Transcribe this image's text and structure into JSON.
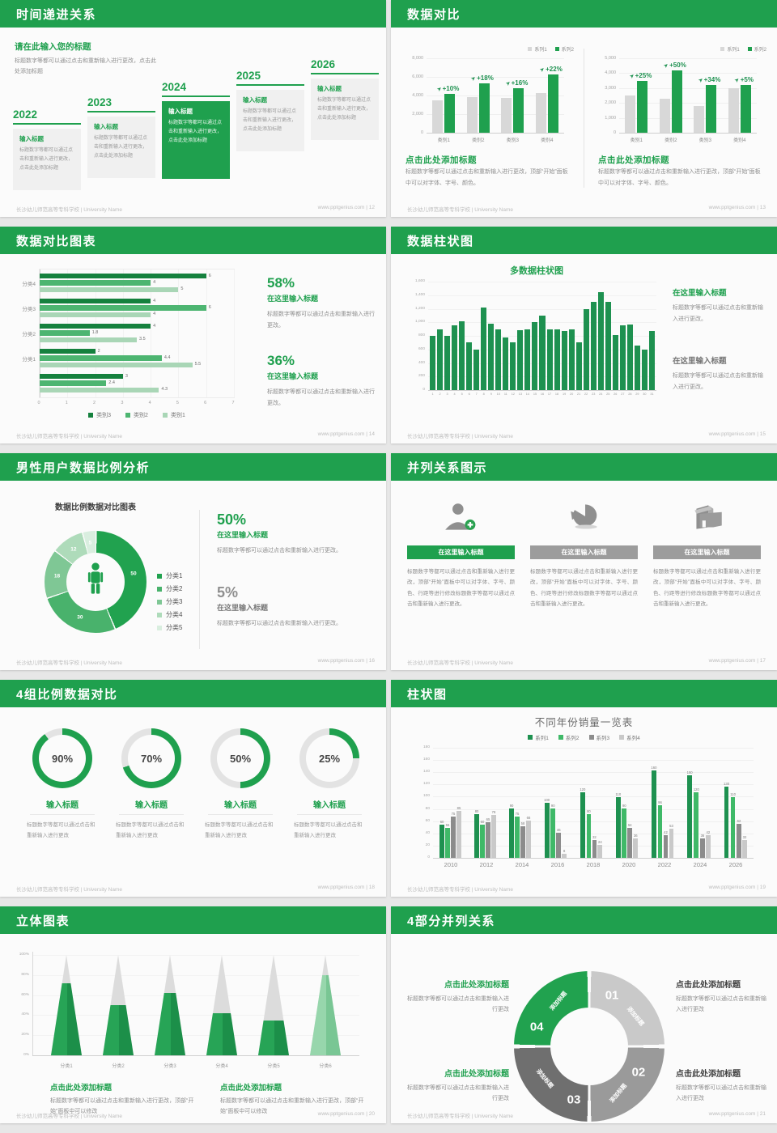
{
  "theme": {
    "green": "#1FA04E",
    "green_dark": "#15813E",
    "green_mid": "#4DB571",
    "green_light": "#A9D6B6",
    "green_pale": "#D8EDDE",
    "green_dark2": "#1E9150",
    "green_bright": "#3FB968",
    "gray_bar": "#D8D8D8",
    "gray_dark": "#8C8C8C",
    "gray_light": "#C9C9C9",
    "gray_text": "#8F8F8F",
    "heading_dark": "#404040"
  },
  "footer": {
    "left": "长沙幼儿师范高等专科学校 | University Name",
    "site": "www.pptgenius.com"
  },
  "slides": {
    "s12": {
      "header": "时间递进关系",
      "page": "12",
      "intro_title": "请在此输入您的标题",
      "intro_body": "标题数字等都可以通过点击和重新输入进行更改，点击此处添加标题",
      "items": [
        {
          "year": "2022",
          "title": "输入标题",
          "body": "标题数字等都可以通过点击和重新输入进行更改，点击此处添加标题",
          "highlight": false
        },
        {
          "year": "2023",
          "title": "输入标题",
          "body": "标题数字等都可以通过点击和重新输入进行更改，点击此处添加标题",
          "highlight": false
        },
        {
          "year": "2024",
          "title": "输入标题",
          "body": "标题数字等都可以通过点击和重新输入进行更改，点击此处添加标题",
          "highlight": true
        },
        {
          "year": "2025",
          "title": "输入标题",
          "body": "标题数字等都可以通过点击和重新输入进行更改，点击此处添加标题",
          "highlight": false
        },
        {
          "year": "2026",
          "title": "输入标题",
          "body": "标题数字等都可以通过点击和重新输入进行更改，点击此处添加标题",
          "highlight": false
        }
      ]
    },
    "s13": {
      "header": "数据对比",
      "page": "13",
      "panels": [
        {
          "heading": "点击此处添加标题",
          "body": "标题数字等都可以通过点击和重新输入进行更改，顶部“开始”面板中可以对字体、字号、颜色。"
        },
        {
          "heading": "点击此处添加标题",
          "body": "标题数字等都可以通过点击和重新输入进行更改，顶部“开始”面板中可以对字体、字号、颜色。"
        }
      ]
    },
    "s14": {
      "header": "数据对比图表",
      "page": "14",
      "stats": [
        {
          "pct": "58%",
          "title": "在这里输入标题",
          "body": "标题数字等都可以通过点击和重新输入进行更改。",
          "green": true
        },
        {
          "pct": "36%",
          "title": "在这里输入标题",
          "body": "标题数字等都可以通过点击和重新输入进行更改。",
          "green": true
        }
      ]
    },
    "s15": {
      "header": "数据柱状图",
      "page": "15",
      "stats": [
        {
          "title": "在这里输入标题",
          "body": "标题数字等都可以通过点击和重新输入进行更改。",
          "green": true
        },
        {
          "title": "在这里输入标题",
          "body": "标题数字等都可以通过点击和重新输入进行更改。",
          "green": false
        }
      ]
    },
    "s16": {
      "header": "男性用户数据比例分析",
      "page": "16",
      "chart_title": "数据比例数据对比图表",
      "stats": [
        {
          "pct": "50%",
          "title": "在这里输入标题",
          "body": "标题数字等都可以通过点击和重新输入进行更改。",
          "green": true
        },
        {
          "pct": "5%",
          "title": "在这里输入标题",
          "body": "标题数字等都可以通过点击和重新输入进行更改。",
          "green": false
        }
      ]
    },
    "s17": {
      "header": "并列关系图示",
      "page": "17",
      "columns": [
        {
          "icon": "person-add-icon",
          "title": "在这里输入标题",
          "green": true,
          "body": "标题数字等都可以通过点击和重新输入进行更改，顶部“开始”面板中可以对字体、字号、颜色、行距等进行修改标题数字等都可以通过点击和重新输入进行更改。"
        },
        {
          "icon": "pie-3d-icon",
          "title": "在这里输入标题",
          "green": false,
          "body": "标题数字等都可以通过点击和重新输入进行更改，顶部“开始”面板中可以对字体、字号、颜色、行距等进行修改标题数字等都可以通过点击和重新输入进行更改。"
        },
        {
          "icon": "building-icon",
          "title": "在这里输入标题",
          "green": false,
          "body": "标题数字等都可以通过点击和重新输入进行更改，顶部“开始”面板中可以对字体、字号、颜色、行距等进行修改标题数字等都可以通过点击和重新输入进行更改。"
        }
      ]
    },
    "s18": {
      "header": "4组比例数据对比",
      "page": "18",
      "items": [
        {
          "pct": "90%",
          "title": "输入标题",
          "body": "标题数字等都可以通过点击和重新输入进行更改"
        },
        {
          "pct": "70%",
          "title": "输入标题",
          "body": "标题数字等都可以通过点击和重新输入进行更改"
        },
        {
          "pct": "50%",
          "title": "输入标题",
          "body": "标题数字等都可以通过点击和重新输入进行更改"
        },
        {
          "pct": "25%",
          "title": "输入标题",
          "body": "标题数字等都可以通过点击和重新输入进行更改"
        }
      ]
    },
    "s19": {
      "header": "柱状图",
      "page": "19"
    },
    "s20": {
      "header": "立体图表",
      "page": "20",
      "blocks": [
        {
          "heading": "点击此处添加标题",
          "body": "标题数字等都可以通过点击和重新输入进行更改，顶部“开始”面板中可以修改"
        },
        {
          "heading": "点击此处添加标题",
          "body": "标题数字等都可以通过点击和重新输入进行更改，顶部“开始”面板中可以修改"
        }
      ]
    },
    "s21": {
      "header": "4部分并列关系",
      "page": "21",
      "segments": [
        {
          "num": "01",
          "label": "添加标题"
        },
        {
          "num": "02",
          "label": "添加标题"
        },
        {
          "num": "03",
          "label": "添加标题"
        },
        {
          "num": "04",
          "label": "添加标题"
        }
      ],
      "callouts": [
        {
          "pos": "tl",
          "green": true,
          "heading": "点击此处添加标题",
          "body": "标题数字等都可以通过点击和重新输入进行更改"
        },
        {
          "pos": "tr",
          "green": false,
          "heading": "点击此处添加标题",
          "body": "标题数字等都可以通过点击和重新输入进行更改"
        },
        {
          "pos": "bl",
          "green": true,
          "heading": "点击此处添加标题",
          "body": "标题数字等都可以通过点击和重新输入进行更改"
        },
        {
          "pos": "br",
          "green": false,
          "heading": "点击此处添加标题",
          "body": "标题数字等都可以通过点击和重新输入进行更改"
        }
      ]
    }
  },
  "chart_data": [
    {
      "id": "s13-left",
      "type": "bar",
      "categories": [
        "类别1",
        "类别2",
        "类别3",
        "类别4"
      ],
      "series": [
        {
          "name": "系列1",
          "color_key": "gray_bar",
          "values": [
            3500,
            3800,
            3700,
            4300
          ]
        },
        {
          "name": "系列2",
          "color_key": "green",
          "values": [
            4200,
            5300,
            4800,
            6300
          ]
        }
      ],
      "growth_labels": [
        "+10%",
        "+18%",
        "+16%",
        "+22%"
      ],
      "ylim": [
        0,
        8000
      ],
      "yticks": [
        "8,000",
        "6,000",
        "4,000",
        "2,000",
        "0"
      ],
      "legend_position": "top-right",
      "grid": true
    },
    {
      "id": "s13-right",
      "type": "bar",
      "categories": [
        "类别1",
        "类别2",
        "类别3",
        "类别4"
      ],
      "series": [
        {
          "name": "系列1",
          "color_key": "gray_bar",
          "values": [
            2500,
            2300,
            1800,
            3000
          ]
        },
        {
          "name": "系列2",
          "color_key": "green",
          "values": [
            3500,
            4200,
            3200,
            3200
          ]
        }
      ],
      "growth_labels": [
        "+25%",
        "+50%",
        "+34%",
        "+5%"
      ],
      "ylim": [
        0,
        5000
      ],
      "yticks": [
        "5,000",
        "4,000",
        "3,000",
        "2,000",
        "1,000",
        "0"
      ],
      "legend_position": "top-right",
      "grid": true
    },
    {
      "id": "s14",
      "type": "bar-horizontal",
      "categories": [
        "分类4",
        "分类3",
        "分类2",
        "分类1",
        ""
      ],
      "series": [
        {
          "name": "类别3",
          "color_key": "green_dark",
          "values": [
            6,
            4,
            4,
            2,
            3
          ]
        },
        {
          "name": "类别2",
          "color_key": "green_mid",
          "values": [
            4,
            6,
            1.8,
            4.4,
            2.4
          ]
        },
        {
          "name": "类别1",
          "color_key": "green_light",
          "values": [
            5,
            4,
            3.5,
            5.5,
            4.3
          ]
        }
      ],
      "xlim": [
        0,
        7
      ],
      "xticks": [
        "0",
        "1",
        "2",
        "3",
        "4",
        "5",
        "6",
        "7"
      ],
      "legend_position": "bottom",
      "grid": true
    },
    {
      "id": "s15",
      "type": "bar",
      "title": "多数据柱状图",
      "x": [
        1,
        2,
        3,
        4,
        5,
        6,
        7,
        8,
        9,
        10,
        11,
        12,
        13,
        14,
        15,
        16,
        17,
        18,
        19,
        20,
        21,
        22,
        23,
        24,
        25,
        26,
        27,
        28,
        29,
        30,
        31
      ],
      "values": [
        800,
        900,
        800,
        950,
        1020,
        700,
        600,
        1220,
        980,
        890,
        780,
        700,
        880,
        890,
        1000,
        1100,
        890,
        890,
        870,
        890,
        700,
        1200,
        1300,
        1450,
        1300,
        810,
        960,
        970,
        660,
        600,
        870
      ],
      "ylim": [
        0,
        1600
      ],
      "yticks": [
        "1,600",
        "1,400",
        "1,200",
        "1,000",
        "800",
        "600",
        "400",
        "200",
        "0"
      ],
      "grid": true
    },
    {
      "id": "s16",
      "type": "pie",
      "labels": [
        "分类1",
        "分类2",
        "分类3",
        "分类4",
        "分类5"
      ],
      "values": [
        50,
        30,
        18,
        12,
        5
      ],
      "colors": [
        "#21A24F",
        "#49B26C",
        "#7FC795",
        "#AEDBBA",
        "#D9EEDF"
      ],
      "center_icon": "male-person-icon",
      "legend_position": "right"
    },
    {
      "id": "s18",
      "type": "donut-rings",
      "values": [
        90,
        70,
        50,
        25
      ]
    },
    {
      "id": "s19",
      "type": "bar",
      "title": "不同年份销量一览表",
      "categories": [
        "2010",
        "2012",
        "2014",
        "2016",
        "2018",
        "2020",
        "2022",
        "2024",
        "2026"
      ],
      "series": [
        {
          "name": "系列1",
          "color_key": "green_dark2",
          "values": [
            60,
            80,
            90,
            100,
            120,
            110,
            160,
            150,
            130
          ]
        },
        {
          "name": "系列2",
          "color_key": "green_bright",
          "values": [
            55,
            60,
            75,
            90,
            80,
            90,
            96,
            120,
            110
          ]
        },
        {
          "name": "系列3",
          "color_key": "gray_dark",
          "values": [
            75,
            65,
            58,
            46,
            32,
            54,
            42,
            36,
            62
          ]
        },
        {
          "name": "系列4",
          "color_key": "gray_light",
          "values": [
            85,
            78,
            68,
            8,
            24,
            36,
            53,
            42,
            32
          ]
        }
      ],
      "ylim": [
        0,
        180
      ],
      "ytick_step": 20,
      "legend_position": "top",
      "grid": true,
      "data_labels": true
    },
    {
      "id": "s20",
      "type": "cone",
      "categories": [
        "分类1",
        "分类2",
        "分类3",
        "分类4",
        "分类5",
        "分类6"
      ],
      "values_pct": [
        72,
        50,
        62,
        42,
        35,
        80
      ],
      "yticks": [
        "100%",
        "80%",
        "60%",
        "40%",
        "20%",
        "0%"
      ]
    },
    {
      "id": "s21",
      "type": "cycle",
      "parts": 4,
      "part_colors": [
        "#C9C9C9",
        "#9A9A9A",
        "#6F6F6F",
        "#21A24F"
      ]
    }
  ]
}
